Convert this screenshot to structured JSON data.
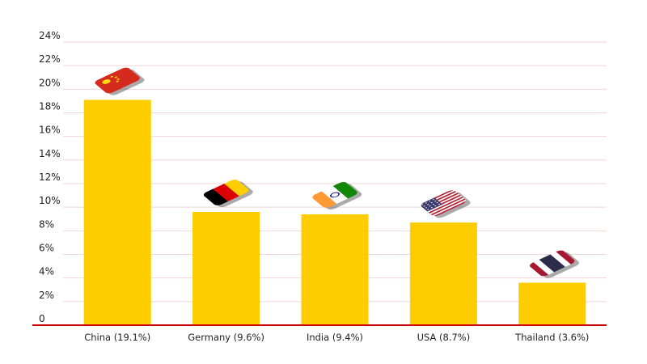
{
  "chart_data": {
    "type": "bar",
    "title": "",
    "xlabel": "",
    "ylabel": "",
    "categories": [
      "China (19.1%)",
      "Germany (9.6%)",
      "India (9.4%)",
      "USA (8.7%)",
      "Thailand (3.6%)"
    ],
    "values": [
      19.1,
      9.6,
      9.4,
      8.7,
      3.6
    ],
    "flags": [
      "china-flag-icon",
      "germany-flag-icon",
      "india-flag-icon",
      "usa-flag-icon",
      "thailand-flag-icon"
    ],
    "y_ticks": [
      "0",
      "2%",
      "4%",
      "6%",
      "8%",
      "10%",
      "12%",
      "14%",
      "16%",
      "18%",
      "20%",
      "22%",
      "24%"
    ],
    "ylim": [
      0,
      24
    ],
    "grid": true,
    "colors": {
      "bar": "#ffcc00",
      "grid": "#f0d4d8",
      "baseline": "#cc0000"
    }
  }
}
